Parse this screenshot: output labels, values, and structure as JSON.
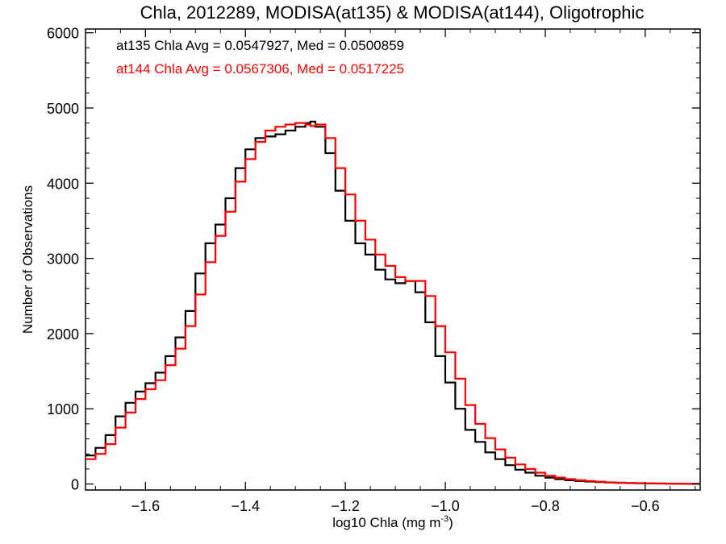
{
  "chart_data": {
    "type": "line",
    "title": "Chla, 2012289, MODISA(at135) & MODISA(at144), Oligotrophic",
    "xlabel": "log10 Chla (mg m",
    "xlabel_sup": "-3",
    "xlabel_close": ")",
    "ylabel": "Number of Observations",
    "xlim": [
      -1.72,
      -0.49
    ],
    "ylim": [
      -80,
      6050
    ],
    "x_ticks": [
      -1.6,
      -1.4,
      -1.2,
      -1.0,
      -0.8,
      -0.6
    ],
    "x_tick_labels": [
      "−1.6",
      "−1.4",
      "−1.2",
      "−1.0",
      "−0.8",
      "−0.6"
    ],
    "y_ticks": [
      0,
      1000,
      2000,
      3000,
      4000,
      5000,
      6000
    ],
    "y_tick_labels": [
      "0",
      "1000",
      "2000",
      "3000",
      "4000",
      "5000",
      "6000"
    ],
    "grid": false,
    "legend": "none",
    "annotations": [
      {
        "text": "at135 Chla Avg = 0.0547927, Med = 0.0500859",
        "color": "#000000"
      },
      {
        "text": "at144 Chla Avg = 0.0567306, Med = 0.0517225",
        "color": "#ff0000"
      }
    ],
    "series": [
      {
        "color": "#000000",
        "x": [
          -1.72,
          -1.7,
          -1.68,
          -1.66,
          -1.64,
          -1.62,
          -1.6,
          -1.58,
          -1.56,
          -1.54,
          -1.52,
          -1.5,
          -1.48,
          -1.46,
          -1.44,
          -1.42,
          -1.4,
          -1.38,
          -1.36,
          -1.34,
          -1.32,
          -1.3,
          -1.28,
          -1.27,
          -1.26,
          -1.24,
          -1.22,
          -1.2,
          -1.18,
          -1.16,
          -1.14,
          -1.12,
          -1.1,
          -1.08,
          -1.06,
          -1.04,
          -1.02,
          -1.0,
          -0.98,
          -0.96,
          -0.94,
          -0.92,
          -0.9,
          -0.88,
          -0.86,
          -0.84,
          -0.82,
          -0.8,
          -0.78,
          -0.76,
          -0.74,
          -0.72,
          -0.7,
          -0.68,
          -0.66,
          -0.64,
          -0.62,
          -0.6,
          -0.58,
          -0.56,
          -0.54,
          -0.52,
          -0.5
        ],
        "y": [
          380,
          480,
          650,
          900,
          1080,
          1230,
          1340,
          1480,
          1700,
          1950,
          2300,
          2800,
          3200,
          3450,
          3800,
          4200,
          4450,
          4600,
          4620,
          4650,
          4700,
          4750,
          4800,
          4820,
          4750,
          4400,
          3900,
          3500,
          3200,
          3050,
          2850,
          2720,
          2670,
          2700,
          2550,
          2150,
          1700,
          1350,
          1000,
          720,
          560,
          420,
          330,
          250,
          190,
          150,
          110,
          85,
          65,
          50,
          40,
          32,
          25,
          20,
          15,
          12,
          10,
          8,
          6,
          5,
          4,
          3,
          2
        ]
      },
      {
        "color": "#ff0000",
        "x": [
          -1.72,
          -1.7,
          -1.68,
          -1.66,
          -1.64,
          -1.62,
          -1.6,
          -1.58,
          -1.56,
          -1.54,
          -1.52,
          -1.5,
          -1.48,
          -1.46,
          -1.44,
          -1.42,
          -1.4,
          -1.38,
          -1.36,
          -1.34,
          -1.32,
          -1.3,
          -1.28,
          -1.27,
          -1.26,
          -1.24,
          -1.22,
          -1.2,
          -1.18,
          -1.16,
          -1.14,
          -1.12,
          -1.1,
          -1.08,
          -1.06,
          -1.04,
          -1.02,
          -1.0,
          -0.98,
          -0.96,
          -0.94,
          -0.92,
          -0.9,
          -0.88,
          -0.86,
          -0.84,
          -0.82,
          -0.8,
          -0.78,
          -0.76,
          -0.74,
          -0.72,
          -0.7,
          -0.68,
          -0.66,
          -0.64,
          -0.62,
          -0.6,
          -0.58,
          -0.56,
          -0.54,
          -0.52,
          -0.5
        ],
        "y": [
          330,
          400,
          530,
          750,
          950,
          1130,
          1260,
          1380,
          1580,
          1800,
          2100,
          2520,
          2950,
          3300,
          3620,
          4020,
          4320,
          4550,
          4700,
          4750,
          4780,
          4800,
          4780,
          4760,
          4780,
          4600,
          4200,
          3850,
          3500,
          3250,
          3050,
          2900,
          2750,
          2700,
          2700,
          2500,
          2100,
          1750,
          1400,
          1050,
          800,
          610,
          460,
          350,
          260,
          200,
          150,
          110,
          85,
          65,
          50,
          40,
          30,
          22,
          18,
          14,
          11,
          9,
          7,
          5,
          4,
          3,
          2
        ]
      }
    ]
  }
}
